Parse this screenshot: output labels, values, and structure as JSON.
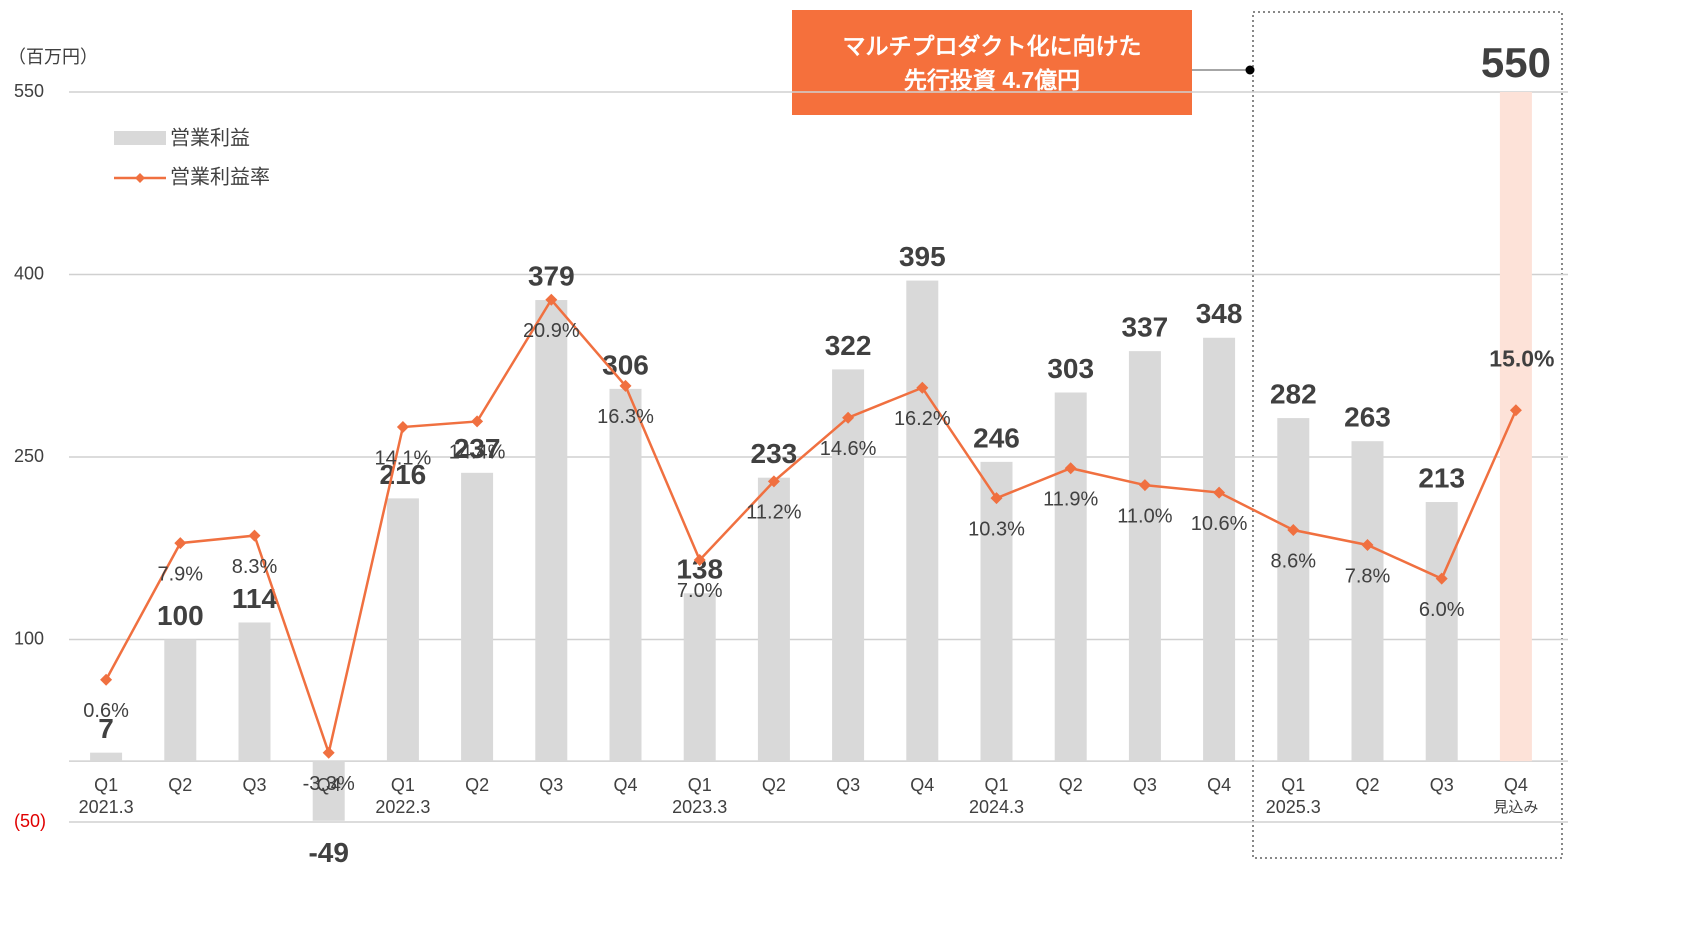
{
  "chart_data": {
    "type": "bar_line",
    "y_axis_label": "（百万円）",
    "annotation": [
      "マルチプロダクト化に向けた",
      "先行投資 4.7億円"
    ],
    "annotation_color": "#f5703c",
    "categories": [
      "Q1",
      "Q2",
      "Q3",
      "Q4",
      "Q1",
      "Q2",
      "Q3",
      "Q4",
      "Q1",
      "Q2",
      "Q3",
      "Q4",
      "Q1",
      "Q2",
      "Q3",
      "Q4",
      "Q1",
      "Q2",
      "Q3",
      "Q4"
    ],
    "sublabels": [
      "2021.3",
      null,
      null,
      null,
      "2022.3",
      null,
      null,
      null,
      "2023.3",
      null,
      null,
      null,
      "2024.3",
      null,
      null,
      null,
      "2025.3",
      null,
      null,
      "見込み"
    ],
    "series": [
      {
        "name": "営業利益",
        "color": "#d9d9d9",
        "forecast_color": "#fde2d8",
        "values": [
          7,
          100,
          114,
          -49,
          216,
          237,
          379,
          306,
          138,
          233,
          322,
          395,
          246,
          303,
          337,
          348,
          282,
          263,
          213,
          550
        ]
      },
      {
        "name": "営業利益率",
        "color": "#f07040",
        "axis": "y2",
        "values": [
          0.6,
          7.9,
          8.3,
          -3.3,
          14.1,
          14.4,
          20.9,
          16.3,
          7.0,
          11.2,
          14.6,
          16.2,
          10.3,
          11.9,
          11.0,
          10.6,
          8.6,
          7.8,
          6.0,
          15.0
        ],
        "value_labels": [
          "0.6%",
          "7.9%",
          "8.3%",
          "-3.3%",
          "14.1%",
          "14.4%",
          "20.9%",
          "16.3%",
          "7.0%",
          "11.2%",
          "14.6%",
          "16.2%",
          "10.3%",
          "11.9%",
          "11.0%",
          "10.6%",
          "8.6%",
          "7.8%",
          "6.0%",
          "15.0%"
        ]
      }
    ],
    "ylim": [
      -50,
      550
    ],
    "yticks": [
      {
        "value": -50,
        "label": "(50)"
      },
      100,
      250,
      400,
      550
    ],
    "y2lim": [
      -7,
      32
    ],
    "grid": true
  }
}
